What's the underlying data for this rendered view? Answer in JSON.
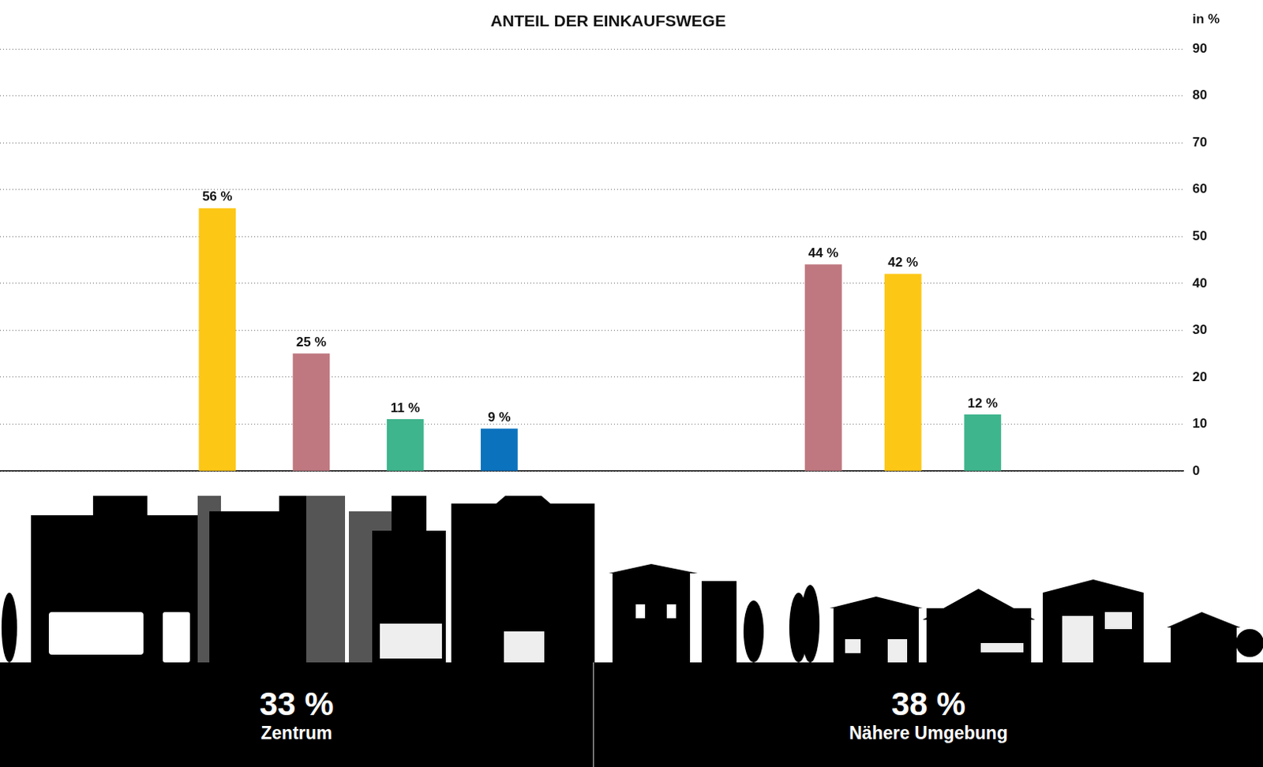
{
  "chart_data": {
    "type": "bar",
    "title": "ANTEIL DER EINKAUFSWEGE",
    "y_label": "in %",
    "ylim": [
      0,
      90
    ],
    "yticks": [
      0,
      10,
      20,
      30,
      40,
      50,
      60,
      70,
      80,
      90
    ],
    "grid": true,
    "data_labels": true,
    "groups": [
      {
        "name": "Zentrum",
        "share": 33,
        "share_label": "33 %",
        "values": [
          56,
          25,
          11,
          9
        ],
        "value_labels": [
          "56 %",
          "25 %",
          "11 %",
          "9 %"
        ],
        "colors": [
          "#fdc716",
          "#bf7880",
          "#3fb58d",
          "#0b72be"
        ]
      },
      {
        "name": "Nähere Umgebung",
        "share": 38,
        "share_label": "38 %",
        "values": [
          44,
          42,
          12
        ],
        "value_labels": [
          "44 %",
          "42 %",
          "12 %"
        ],
        "colors": [
          "#bf7880",
          "#fdc716",
          "#3fb58d"
        ]
      }
    ]
  }
}
